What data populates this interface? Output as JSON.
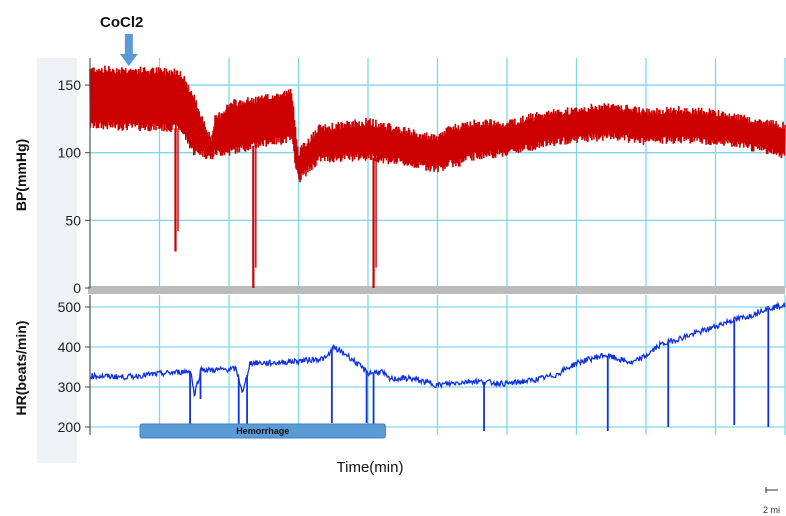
{
  "chart_data": [
    {
      "type": "line",
      "ylabel": "BP(mmHg)",
      "ylim": [
        0,
        170
      ],
      "yticks": [
        0,
        50,
        100,
        150
      ],
      "grid": true,
      "series": [
        {
          "color": "#cc0000",
          "envelope": {
            "x": [
              0,
              13,
              15,
              16,
              17.5,
              18,
              19,
              20,
              21,
              25,
              29,
              30,
              33,
              40,
              50,
              52,
              53,
              55,
              60,
              65,
              70,
              75,
              80,
              85,
              90,
              95,
              100
            ],
            "upper": [
              162,
              160,
              140,
              128,
              108,
              125,
              130,
              135,
              137,
              140,
              145,
              100,
              118,
              123,
              110,
              120,
              118,
              122,
              122,
              128,
              132,
              135,
              130,
              132,
              130,
              124,
              120
            ],
            "lower": [
              120,
              118,
              100,
              100,
              96,
              100,
              100,
              100,
              102,
              107,
              110,
              80,
              95,
              97,
              88,
              92,
              92,
              97,
              100,
              106,
              110,
              112,
              108,
              110,
              108,
              104,
              98
            ]
          },
          "drops": [
            {
              "x": 12.3,
              "min": 27
            },
            {
              "x": 23.5,
              "min": 0
            },
            {
              "x": 40.8,
              "min": 0
            }
          ]
        }
      ]
    },
    {
      "type": "line",
      "ylabel": "HR(beats/min)",
      "ylim": [
        180,
        530
      ],
      "yticks": [
        200,
        300,
        400,
        500
      ],
      "xlabel": "Time(min)",
      "grid": true,
      "series": [
        {
          "color": "#1133dd",
          "x": [
            0,
            5,
            10,
            14.5,
            15,
            16,
            17,
            21,
            22,
            23,
            26,
            30,
            34,
            35,
            37,
            40,
            42,
            43,
            46,
            50,
            55,
            60,
            64,
            67,
            70,
            74,
            78,
            80,
            82,
            86,
            89,
            92,
            95,
            97,
            100
          ],
          "y": [
            328,
            325,
            333,
            340,
            280,
            345,
            342,
            345,
            285,
            360,
            360,
            365,
            372,
            398,
            380,
            335,
            338,
            320,
            322,
            305,
            315,
            308,
            318,
            330,
            360,
            380,
            360,
            378,
            405,
            428,
            445,
            465,
            478,
            495,
            505
          ],
          "dips": [
            {
              "x": 14.4,
              "min": 205
            },
            {
              "x": 15.9,
              "min": 270
            },
            {
              "x": 21.4,
              "min": 200
            },
            {
              "x": 22.6,
              "min": 200
            },
            {
              "x": 34.8,
              "min": 210
            },
            {
              "x": 39.8,
              "min": 210
            },
            {
              "x": 40.8,
              "min": 205
            },
            {
              "x": 56.7,
              "min": 190
            },
            {
              "x": 74.5,
              "min": 190
            },
            {
              "x": 83.2,
              "min": 200
            },
            {
              "x": 92.7,
              "min": 205
            },
            {
              "x": 97.6,
              "min": 200
            }
          ]
        }
      ]
    }
  ],
  "x_range": [
    0,
    100
  ],
  "annotations": {
    "arrow_label": "CoCl2",
    "arrow_x": 3,
    "hemorrhage_label": "Hemorrhage",
    "hemorrhage_start": 7.2,
    "hemorrhage_end": 42.5,
    "scale_label": "2 mi"
  },
  "colors": {
    "grid": "#7fd6ea",
    "bp": "#cc0000",
    "hr": "#1133dd",
    "hemorrhage_bar": "#5b9bd5",
    "separator": "#bbbbbb"
  }
}
